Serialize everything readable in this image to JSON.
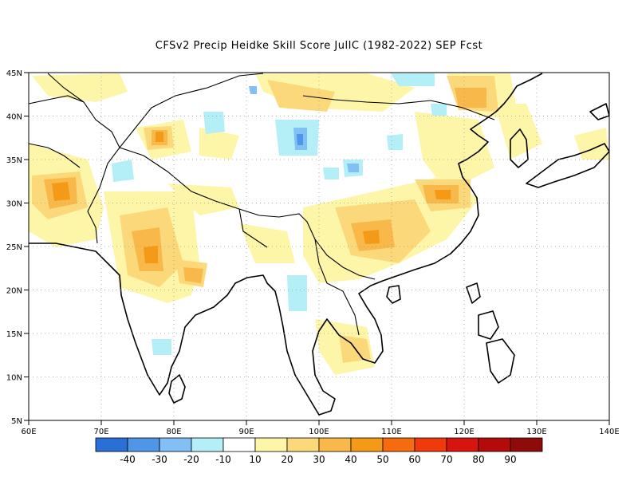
{
  "title": "CFSv2 Precip Heidke Skill Score JulIC (1982-2022) SEP Fcst",
  "lat_labels": [
    "45N",
    "40N",
    "35N",
    "30N",
    "25N",
    "20N",
    "15N",
    "10N",
    "5N"
  ],
  "lon_labels": [
    "60E",
    "70E",
    "80E",
    "90E",
    "100E",
    "110E",
    "120E",
    "130E",
    "140E"
  ],
  "colorbar": {
    "colors": [
      "#2a6fd6",
      "#4f95e8",
      "#82bff5",
      "#b4eef7",
      "#ffffff",
      "#fdf6a9",
      "#fbd97a",
      "#f8b84a",
      "#f49a16",
      "#f56b0d",
      "#f03a0c",
      "#d8140e",
      "#b40a0a",
      "#8f0a0a"
    ],
    "tick_labels": [
      "-40",
      "-30",
      "-20",
      "-10",
      "10",
      "20",
      "30",
      "40",
      "50",
      "60",
      "70",
      "80",
      "90"
    ]
  }
}
